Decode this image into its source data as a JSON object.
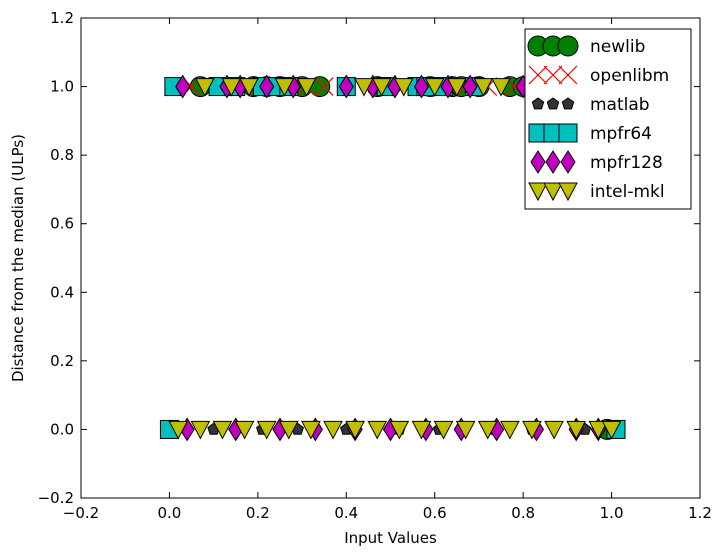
{
  "chart_data": {
    "type": "scatter",
    "xlabel": "Input Values",
    "ylabel": "Distance from the median (ULPs)",
    "xlim": [
      -0.2,
      1.2
    ],
    "ylim": [
      -0.2,
      1.2
    ],
    "xticks": [
      -0.2,
      0.0,
      0.2,
      0.4,
      0.6,
      0.8,
      1.0,
      1.2
    ],
    "yticks": [
      -0.2,
      0.0,
      0.2,
      0.4,
      0.6,
      0.8,
      1.0,
      1.2
    ],
    "xtick_labels": [
      "−0.2",
      "0.0",
      "0.2",
      "0.4",
      "0.6",
      "0.8",
      "1.0",
      "1.2"
    ],
    "ytick_labels": [
      "−0.2",
      "0.0",
      "0.2",
      "0.4",
      "0.6",
      "0.8",
      "1.0",
      "1.2"
    ],
    "grid": false,
    "legend_position": "top-right",
    "series": [
      {
        "name": "newlib",
        "marker": "circle",
        "color": "#008000",
        "x": [
          0.07,
          0.19,
          0.22,
          0.25,
          0.3,
          0.34,
          0.47,
          0.59,
          0.64,
          0.66,
          0.7,
          0.77,
          0.8,
          0.83,
          0.99
        ],
        "y": [
          1,
          1,
          1,
          1,
          1,
          1,
          1,
          1,
          1,
          1,
          1,
          1,
          1,
          1,
          0
        ]
      },
      {
        "name": "openlibm",
        "marker": "x",
        "color": "#ff0000",
        "x": [
          0.05,
          0.13,
          0.2,
          0.31,
          0.35,
          0.61,
          0.67,
          0.72,
          0.78
        ],
        "y": [
          1,
          1,
          1,
          1,
          1,
          1,
          1,
          1,
          1
        ]
      },
      {
        "name": "matlab",
        "marker": "pentagon",
        "color": "#333333",
        "x": [
          0.0,
          0.1,
          0.21,
          0.29,
          0.4,
          0.52,
          0.61,
          0.73,
          0.82,
          0.94
        ],
        "y": [
          0,
          0,
          0,
          0,
          0,
          0,
          0,
          0,
          0,
          0
        ]
      },
      {
        "name": "mpfr64",
        "marker": "square",
        "color": "#00bfbf",
        "x": [
          0.01,
          0.11,
          0.15,
          0.21,
          0.24,
          0.27,
          0.4,
          0.49,
          0.56,
          0.58,
          0.62,
          0.69,
          0.0,
          1.01
        ],
        "y": [
          1,
          1,
          1,
          1,
          1,
          1,
          1,
          1,
          1,
          1,
          1,
          1,
          0,
          0
        ]
      },
      {
        "name": "mpfr128",
        "marker": "diamond",
        "color": "#bf00bf",
        "x": [
          0.03,
          0.13,
          0.16,
          0.22,
          0.28,
          0.4,
          0.46,
          0.51,
          0.57,
          0.63,
          0.68,
          0.8,
          0.04,
          0.15,
          0.25,
          0.33,
          0.42,
          0.5,
          0.58,
          0.66,
          0.74,
          0.83,
          0.92,
          0.97
        ],
        "y": [
          1,
          1,
          1,
          1,
          1,
          1,
          1,
          1,
          1,
          1,
          1,
          1,
          0,
          0,
          0,
          0,
          0,
          0,
          0,
          0,
          0,
          0,
          0,
          0
        ]
      },
      {
        "name": "intel-mkl",
        "marker": "triangle-down",
        "color": "#bfbf00",
        "x": [
          0.08,
          0.14,
          0.18,
          0.26,
          0.31,
          0.44,
          0.48,
          0.53,
          0.6,
          0.65,
          0.71,
          0.75,
          0.02,
          0.07,
          0.12,
          0.17,
          0.22,
          0.27,
          0.32,
          0.37,
          0.42,
          0.47,
          0.52,
          0.57,
          0.62,
          0.67,
          0.72,
          0.77,
          0.82,
          0.87,
          0.92,
          0.97,
          1.0
        ],
        "y": [
          1,
          1,
          1,
          1,
          1,
          1,
          1,
          1,
          1,
          1,
          1,
          1,
          0,
          0,
          0,
          0,
          0,
          0,
          0,
          0,
          0,
          0,
          0,
          0,
          0,
          0,
          0,
          0,
          0,
          0,
          0,
          0,
          0
        ]
      }
    ]
  }
}
